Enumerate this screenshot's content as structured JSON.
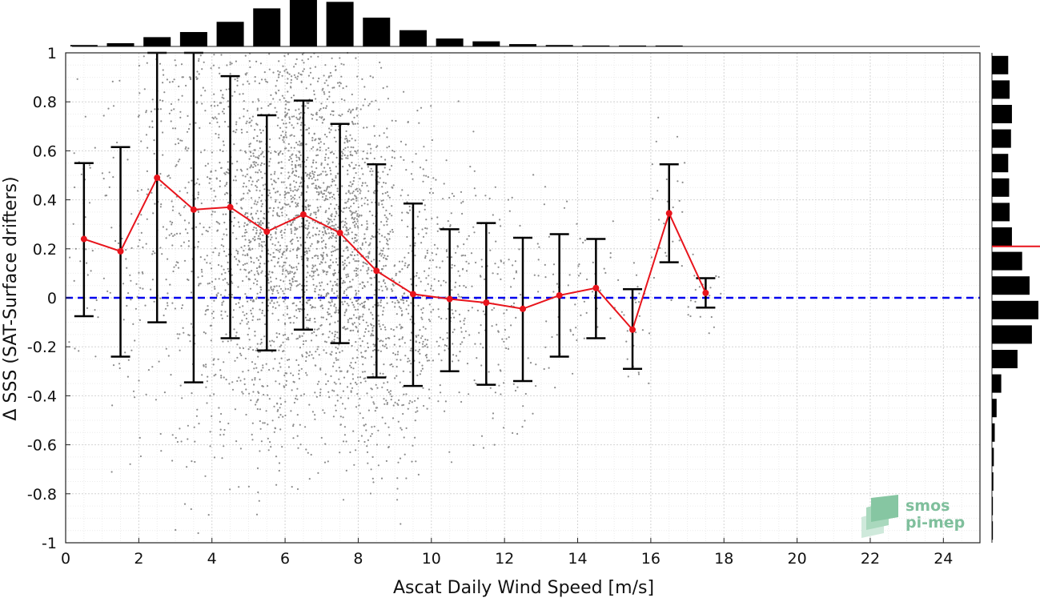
{
  "chart_data": {
    "type": "scatter",
    "xlabel": "Ascat Daily Wind Speed [m/s]",
    "ylabel": "Δ SSS (SAT-Surface drifters)",
    "xlim": [
      0,
      25
    ],
    "ylim": [
      -1,
      1
    ],
    "x_ticks": [
      0,
      2,
      4,
      6,
      8,
      10,
      12,
      14,
      16,
      18,
      20,
      22,
      24
    ],
    "y_ticks": [
      -1,
      -0.8,
      -0.6,
      -0.4,
      -0.2,
      0,
      0.2,
      0.4,
      0.6,
      0.8,
      1
    ],
    "x_tick_labels": [
      "0",
      "2",
      "4",
      "6",
      "8",
      "10",
      "12",
      "14",
      "16",
      "18",
      "20",
      "22",
      "24"
    ],
    "y_tick_labels": [
      "-1",
      "-0.8",
      "-0.6",
      "-0.4",
      "-0.2",
      "0",
      "0.2",
      "0.4",
      "0.6",
      "0.8",
      "1"
    ],
    "grid": true,
    "zero_line": {
      "y": 0,
      "style": "dashed",
      "color": "#0000ee"
    },
    "bin_means": {
      "color": "#e8141c",
      "x": [
        0.5,
        1.5,
        2.5,
        3.5,
        4.5,
        5.5,
        6.5,
        7.5,
        8.5,
        9.5,
        10.5,
        11.5,
        12.5,
        13.5,
        14.5,
        15.5,
        16.5,
        17.5
      ],
      "mean": [
        0.24,
        0.19,
        0.49,
        0.36,
        0.37,
        0.27,
        0.34,
        0.265,
        0.11,
        0.015,
        -0.005,
        -0.02,
        -0.045,
        0.01,
        0.04,
        -0.13,
        0.345,
        0.02
      ],
      "err_low": [
        -0.075,
        -0.24,
        -0.1,
        -0.345,
        -0.165,
        -0.215,
        -0.13,
        -0.185,
        -0.325,
        -0.36,
        -0.3,
        -0.355,
        -0.34,
        -0.24,
        -0.165,
        -0.29,
        0.145,
        -0.04
      ],
      "err_high": [
        0.55,
        0.615,
        1.0,
        1.0,
        0.905,
        0.745,
        0.805,
        0.71,
        0.545,
        0.385,
        0.28,
        0.305,
        0.245,
        0.26,
        0.24,
        0.035,
        0.545,
        0.08
      ]
    },
    "top_histogram": {
      "bin_centers": [
        0.5,
        1.5,
        2.5,
        3.5,
        4.5,
        5.5,
        6.5,
        7.5,
        8.5,
        9.5,
        10.5,
        11.5,
        12.5,
        13.5,
        14.5,
        15.5,
        16.5
      ],
      "relative_heights": [
        0.03,
        0.07,
        0.2,
        0.31,
        0.53,
        0.82,
        1.0,
        0.96,
        0.62,
        0.35,
        0.17,
        0.11,
        0.05,
        0.03,
        0.02,
        0.02,
        0.02
      ]
    },
    "right_histogram": {
      "bin_centers": [
        0.95,
        0.85,
        0.75,
        0.65,
        0.55,
        0.45,
        0.35,
        0.25,
        0.15,
        0.05,
        -0.05,
        -0.15,
        -0.25,
        -0.35,
        -0.45,
        -0.55,
        -0.65,
        -0.75,
        -0.85,
        -0.95
      ],
      "relative_widths": [
        0.35,
        0.38,
        0.43,
        0.41,
        0.35,
        0.37,
        0.38,
        0.43,
        0.65,
        0.81,
        1.0,
        0.86,
        0.55,
        0.2,
        0.1,
        0.06,
        0.04,
        0.03,
        0.02,
        0.02
      ],
      "mean_marker": 0.21
    },
    "scatter_color": "#8c8c8c"
  },
  "logo": {
    "line1": "smos",
    "line2": "pi-mep"
  }
}
